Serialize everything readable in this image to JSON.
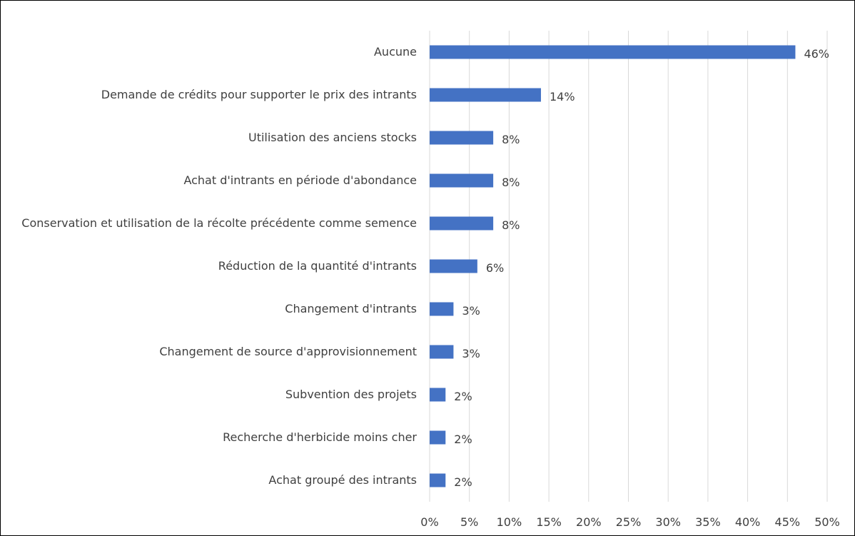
{
  "chart_data": {
    "type": "hbar",
    "categories": [
      "Aucune",
      "Demande de crédits pour supporter le prix des intrants",
      "Utilisation des anciens stocks",
      "Achat d'intrants en période d'abondance",
      "Conservation et utilisation de la récolte précédente comme semence",
      "Réduction de la quantité d'intrants",
      "Changement d'intrants",
      "Changement de source d'approvisionnement",
      "Subvention des projets",
      "Recherche d'herbicide moins cher",
      "Achat groupé des intrants"
    ],
    "values": [
      46,
      14,
      8,
      8,
      8,
      6,
      3,
      3,
      2,
      2,
      2
    ],
    "value_labels": [
      "46%",
      "14%",
      "8%",
      "8%",
      "8%",
      "6%",
      "3%",
      "3%",
      "2%",
      "2%",
      "2%"
    ],
    "color": "#4472c4",
    "xlim": [
      0,
      50
    ],
    "xticks": [
      {
        "value": 0,
        "label": "0%"
      },
      {
        "value": 5,
        "label": "5%"
      },
      {
        "value": 10,
        "label": "10%"
      },
      {
        "value": 15,
        "label": "15%"
      },
      {
        "value": 20,
        "label": "20%"
      },
      {
        "value": 25,
        "label": "25%"
      },
      {
        "value": 30,
        "label": "30%"
      },
      {
        "value": 35,
        "label": "35%"
      },
      {
        "value": 40,
        "label": "40%"
      },
      {
        "value": 45,
        "label": "45%"
      },
      {
        "value": 50,
        "label": "50%"
      }
    ],
    "grid": true
  }
}
